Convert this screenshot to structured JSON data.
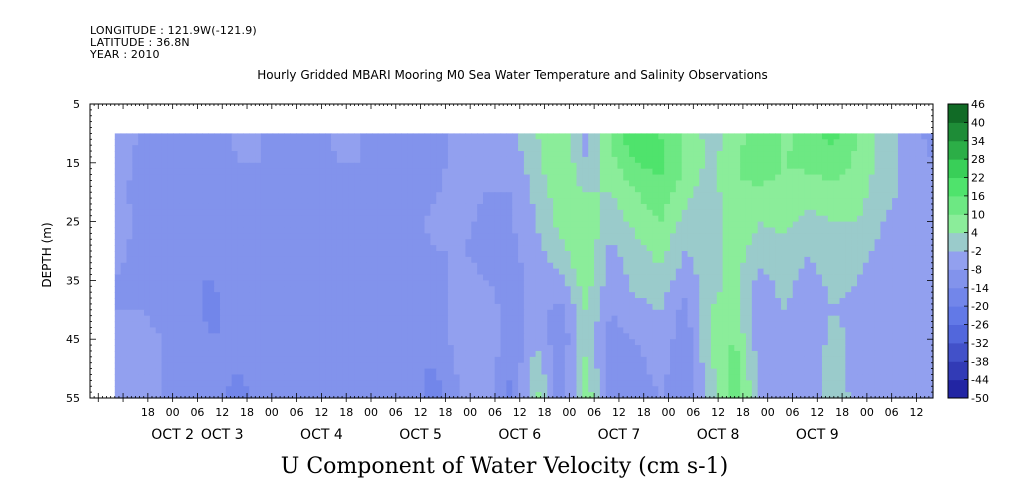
{
  "header": {
    "longitude": "LONGITUDE : 121.9W(-121.9)",
    "latitude": "LATITUDE : 36.8N",
    "year": "YEAR : 2010"
  },
  "title": "Hourly Gridded MBARI Mooring M0 Sea Water Temperature and Salinity Observations",
  "variable_label": "U Component of Water Velocity (cm s-1)",
  "chart_data": {
    "type": "heatmap",
    "title": "Hourly Gridded MBARI Mooring M0 Sea Water Temperature and Salinity Observations",
    "xlabel": "",
    "ylabel": "DEPTH (m)",
    "colorbar_label": "U Component of Water Velocity (cm s-1)",
    "x_range_hours_since_oct2_00": [
      -20,
      184
    ],
    "y_range_m": [
      5,
      55
    ],
    "y_inverted": true,
    "data_depth_range_m": [
      10,
      55
    ],
    "y_ticks": [
      5,
      15,
      25,
      35,
      45,
      55
    ],
    "y_tick_labels": [
      "5",
      "15",
      "25",
      "35",
      "45",
      "55"
    ],
    "x_hour_labels": [
      "18",
      "00",
      "06",
      "12",
      "18",
      "00",
      "06",
      "12",
      "18",
      "00",
      "06",
      "12",
      "18",
      "00",
      "06",
      "12",
      "18",
      "00",
      "06",
      "12",
      "18",
      "00",
      "06",
      "12",
      "18",
      "00",
      "06",
      "12",
      "18",
      "00",
      "06",
      "12"
    ],
    "x_hour_label_positions": [
      -6,
      0,
      6,
      12,
      18,
      24,
      30,
      36,
      42,
      48,
      54,
      60,
      66,
      72,
      78,
      84,
      90,
      96,
      102,
      108,
      114,
      120,
      126,
      132,
      138,
      144,
      150,
      156,
      162,
      168,
      174,
      180
    ],
    "x_day_labels": [
      "OCT  2",
      "OCT  3",
      "OCT  4",
      "OCT  5",
      "OCT  6",
      "OCT  7",
      "OCT  8",
      "OCT  9"
    ],
    "x_day_label_positions": [
      0,
      12,
      36,
      60,
      84,
      108,
      132,
      156
    ],
    "colorbar_levels": [
      -50,
      -44,
      -38,
      -32,
      -26,
      -20,
      -14,
      -8,
      -2,
      4,
      10,
      16,
      22,
      28,
      34,
      40,
      46
    ],
    "colorbar_tick_labels": [
      "46",
      "40",
      "34",
      "28",
      "22",
      "16",
      "10",
      "4",
      "-2",
      "-8",
      "-14",
      "-20",
      "-26",
      "-32",
      "-38",
      "-44",
      "-50"
    ],
    "colors": {
      "negative_deep": "#1a1a99",
      "negative_mid": "#5a72e6",
      "near_zero_neg": "#9aa6f0",
      "near_zero_pos": "#9af0a6",
      "positive_mid": "#40e060",
      "positive_deep": "#0a5a1e"
    },
    "time_series_hours": [
      -20,
      -14,
      -8,
      -2,
      4,
      10,
      16,
      22,
      28,
      34,
      40,
      46,
      52,
      58,
      64,
      70,
      76,
      82,
      88,
      94,
      100,
      106,
      112,
      118,
      124,
      130,
      136,
      142,
      148,
      154,
      160,
      166,
      172,
      178,
      184
    ],
    "depths_m": [
      10,
      15,
      20,
      25,
      30,
      35,
      40,
      45,
      50,
      55
    ],
    "values": [
      [
        4,
        -4,
        -8,
        -10,
        -10,
        -12,
        -6,
        -8,
        -10,
        -12,
        -6,
        -8,
        -12,
        -14,
        -10,
        -6,
        -8,
        -4,
        4,
        8,
        -4,
        10,
        22,
        16,
        8,
        2,
        6,
        16,
        8,
        14,
        18,
        10,
        2,
        -6,
        -10
      ],
      [
        2,
        -4,
        -10,
        -12,
        -10,
        -12,
        -8,
        -8,
        -12,
        -12,
        -8,
        -8,
        -14,
        -14,
        -10,
        -4,
        -6,
        -6,
        2,
        10,
        -2,
        8,
        16,
        18,
        10,
        2,
        8,
        16,
        10,
        12,
        14,
        8,
        2,
        -4,
        -8
      ],
      [
        0,
        -6,
        -10,
        -14,
        -12,
        -10,
        -10,
        -10,
        -14,
        -10,
        -10,
        -8,
        -12,
        -12,
        -8,
        -6,
        -8,
        -8,
        0,
        8,
        4,
        4,
        10,
        14,
        6,
        0,
        10,
        8,
        8,
        6,
        8,
        6,
        0,
        -4,
        -8
      ],
      [
        0,
        -4,
        -10,
        -14,
        -14,
        -10,
        -12,
        -8,
        -14,
        -10,
        -10,
        -10,
        -12,
        -10,
        -6,
        -6,
        -10,
        -8,
        -2,
        6,
        8,
        0,
        6,
        10,
        2,
        -2,
        10,
        4,
        6,
        2,
        4,
        4,
        -2,
        -4,
        -6
      ],
      [
        -2,
        -6,
        -10,
        -12,
        -14,
        -12,
        -10,
        -8,
        -12,
        -12,
        -8,
        -12,
        -14,
        -10,
        -8,
        -8,
        -10,
        -10,
        -4,
        2,
        10,
        -4,
        2,
        6,
        -2,
        0,
        8,
        0,
        2,
        -2,
        2,
        0,
        -4,
        -4,
        -6
      ],
      [
        -2,
        -8,
        -10,
        -12,
        -14,
        -14,
        -8,
        -10,
        -10,
        -14,
        -10,
        -12,
        -12,
        -12,
        -10,
        -6,
        -8,
        -10,
        -6,
        -4,
        8,
        -6,
        0,
        2,
        -6,
        2,
        6,
        -4,
        0,
        -4,
        0,
        -2,
        -6,
        -6,
        -6
      ],
      [
        -2,
        -8,
        -8,
        -10,
        -12,
        -16,
        -10,
        -10,
        -10,
        -14,
        -12,
        -14,
        -12,
        -12,
        -12,
        -4,
        -6,
        -10,
        -6,
        -10,
        4,
        -8,
        -4,
        -2,
        -10,
        4,
        6,
        -6,
        -2,
        -6,
        -2,
        -4,
        -8,
        -6,
        -6
      ],
      [
        -4,
        -6,
        -6,
        -8,
        -10,
        -14,
        -12,
        -10,
        -10,
        -12,
        -14,
        -14,
        -12,
        -14,
        -12,
        -4,
        -4,
        -12,
        -4,
        -12,
        2,
        -10,
        -8,
        -4,
        -12,
        4,
        10,
        -6,
        -4,
        -6,
        0,
        -4,
        -8,
        -6,
        -6
      ],
      [
        -6,
        -4,
        -4,
        -8,
        -10,
        -12,
        -14,
        -10,
        -8,
        -12,
        -14,
        -12,
        -10,
        -14,
        -14,
        -6,
        -4,
        -14,
        2,
        -12,
        6,
        -12,
        -10,
        -6,
        -12,
        2,
        14,
        -4,
        -4,
        -8,
        2,
        -6,
        -8,
        -6,
        -4
      ],
      [
        -6,
        -4,
        -2,
        -8,
        -10,
        -12,
        -16,
        -12,
        -8,
        -10,
        -14,
        -12,
        -10,
        -12,
        -16,
        -8,
        -4,
        -16,
        6,
        -12,
        8,
        -10,
        -12,
        -8,
        -12,
        0,
        14,
        -2,
        -4,
        -8,
        4,
        -6,
        -8,
        -6,
        -4
      ]
    ]
  }
}
